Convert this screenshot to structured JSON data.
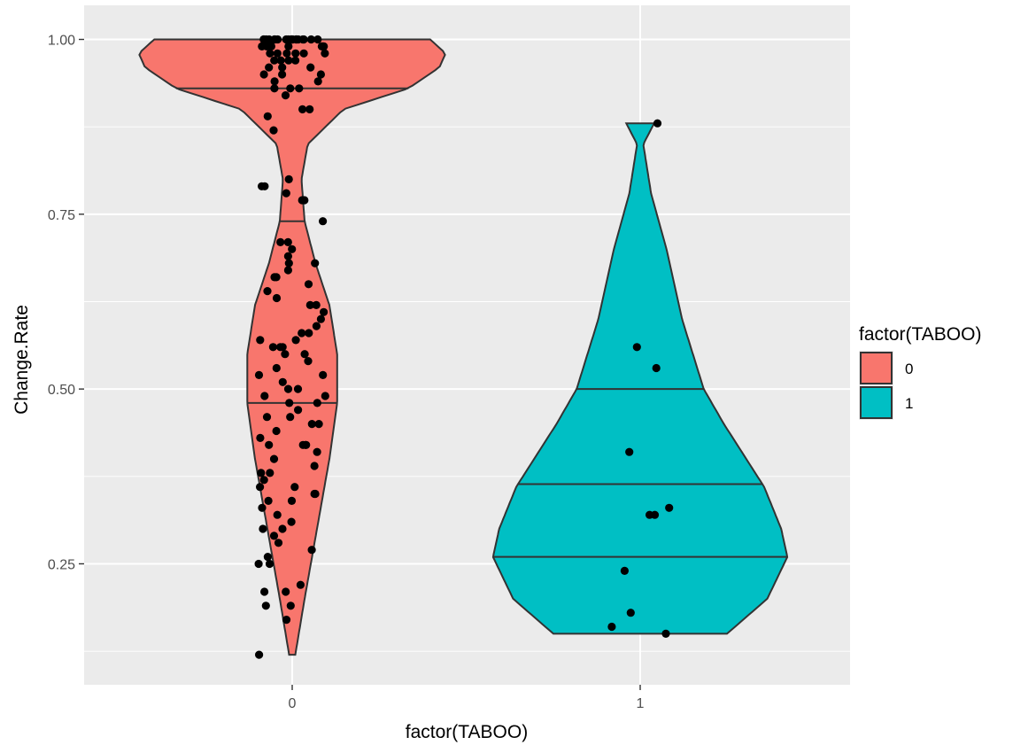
{
  "chart_data": {
    "type": "violin",
    "xlabel": "factor(TABOO)",
    "ylabel": "Change.Rate",
    "ylim": [
      0.09,
      1.03
    ],
    "y_ticks": [
      0.25,
      0.5,
      0.75,
      1.0
    ],
    "y_tick_labels": [
      "0.25",
      "0.50",
      "0.75",
      "1.00"
    ],
    "categories": [
      "0",
      "1"
    ],
    "grid": true,
    "legend": {
      "title": "factor(TABOO)",
      "placement": "right",
      "entries": [
        {
          "label": "0",
          "color": "#F8766D"
        },
        {
          "label": "1",
          "color": "#00BFC4"
        }
      ]
    },
    "series": [
      {
        "group": "0",
        "color": "#F8766D",
        "quantiles": [
          0.48,
          0.74,
          0.93
        ],
        "range": [
          0.12,
          1.0
        ],
        "density_profile": [
          [
            0.12,
            0.02
          ],
          [
            0.2,
            0.08
          ],
          [
            0.3,
            0.16
          ],
          [
            0.4,
            0.24
          ],
          [
            0.48,
            0.29
          ],
          [
            0.55,
            0.29
          ],
          [
            0.62,
            0.24
          ],
          [
            0.68,
            0.15
          ],
          [
            0.74,
            0.08
          ],
          [
            0.8,
            0.06
          ],
          [
            0.85,
            0.1
          ],
          [
            0.9,
            0.33
          ],
          [
            0.93,
            0.75
          ],
          [
            0.96,
            0.95
          ],
          [
            0.98,
            0.99
          ],
          [
            1.0,
            0.89
          ]
        ],
        "points": [
          1.0,
          1.0,
          1.0,
          1.0,
          1.0,
          1.0,
          1.0,
          1.0,
          1.0,
          1.0,
          1.0,
          1.0,
          1.0,
          1.0,
          1.0,
          1.0,
          1.0,
          1.0,
          1.0,
          1.0,
          0.99,
          0.99,
          0.99,
          0.99,
          0.99,
          0.99,
          0.99,
          0.99,
          0.98,
          0.98,
          0.98,
          0.98,
          0.98,
          0.98,
          0.97,
          0.97,
          0.97,
          0.97,
          0.96,
          0.96,
          0.96,
          0.95,
          0.95,
          0.95,
          0.94,
          0.94,
          0.93,
          0.93,
          0.93,
          0.92,
          0.9,
          0.9,
          0.89,
          0.87,
          0.8,
          0.79,
          0.79,
          0.78,
          0.77,
          0.77,
          0.74,
          0.71,
          0.71,
          0.7,
          0.69,
          0.68,
          0.68,
          0.67,
          0.66,
          0.66,
          0.65,
          0.64,
          0.63,
          0.62,
          0.62,
          0.61,
          0.6,
          0.59,
          0.58,
          0.58,
          0.57,
          0.57,
          0.56,
          0.56,
          0.56,
          0.55,
          0.55,
          0.54,
          0.53,
          0.52,
          0.52,
          0.51,
          0.5,
          0.5,
          0.49,
          0.49,
          0.48,
          0.48,
          0.47,
          0.46,
          0.46,
          0.45,
          0.45,
          0.44,
          0.43,
          0.42,
          0.42,
          0.42,
          0.42,
          0.41,
          0.4,
          0.39,
          0.38,
          0.38,
          0.37,
          0.36,
          0.36,
          0.35,
          0.35,
          0.34,
          0.34,
          0.33,
          0.32,
          0.31,
          0.3,
          0.3,
          0.29,
          0.28,
          0.27,
          0.26,
          0.25,
          0.25,
          0.22,
          0.21,
          0.21,
          0.19,
          0.19,
          0.17,
          0.12
        ]
      },
      {
        "group": "1",
        "color": "#00BFC4",
        "quantiles": [
          0.26,
          0.364,
          0.5
        ],
        "range": [
          0.15,
          0.88
        ],
        "density_profile": [
          [
            0.15,
            0.56
          ],
          [
            0.2,
            0.82
          ],
          [
            0.26,
            0.95
          ],
          [
            0.3,
            0.91
          ],
          [
            0.36,
            0.8
          ],
          [
            0.45,
            0.54
          ],
          [
            0.5,
            0.41
          ],
          [
            0.6,
            0.27
          ],
          [
            0.7,
            0.17
          ],
          [
            0.78,
            0.07
          ],
          [
            0.85,
            0.02
          ],
          [
            0.88,
            0.09
          ]
        ],
        "points": [
          0.88,
          0.56,
          0.53,
          0.41,
          0.33,
          0.32,
          0.32,
          0.24,
          0.18,
          0.16,
          0.15
        ]
      }
    ]
  }
}
